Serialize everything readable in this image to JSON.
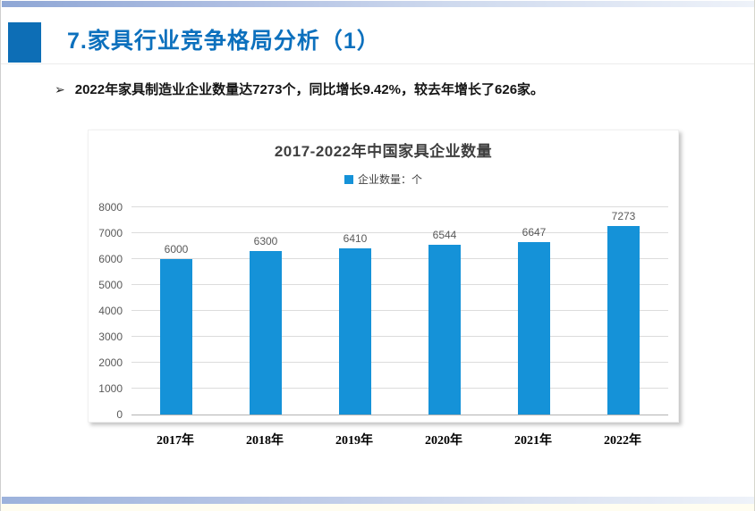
{
  "slide": {
    "title": "7.家具行业竞争格局分析（1）",
    "bullet_marker": "➢",
    "bullet_text": "2022年家具制造业企业数量达7273个，同比增长9.42%，较去年增长了626家。"
  },
  "chart_data": {
    "type": "bar",
    "title": "2017-2022年中国家具企业数量",
    "legend": {
      "label": "企业数量：个",
      "position": "top",
      "color": "#1592d8"
    },
    "categories": [
      "2017年",
      "2018年",
      "2019年",
      "2020年",
      "2021年",
      "2022年"
    ],
    "values": [
      6000,
      6300,
      6410,
      6544,
      6647,
      7273
    ],
    "data_labels": [
      "6000",
      "6300",
      "6410",
      "6544",
      "6647",
      "7273"
    ],
    "xlabel": "",
    "ylabel": "",
    "ylim": [
      0,
      8000
    ],
    "ytick_step": 1000,
    "grid": true,
    "bar_color": "#1592d8"
  },
  "colors": {
    "title_blue": "#0c70bd",
    "accent_square_blue": "#0d6eb6",
    "bar_blue": "#1592d8",
    "top_bottom_band_blue": "#9cb2dc",
    "gridline_gray": "#dcdcdc",
    "axis_text_gray": "#595959",
    "chart_title_gray": "#3f3f3f"
  }
}
